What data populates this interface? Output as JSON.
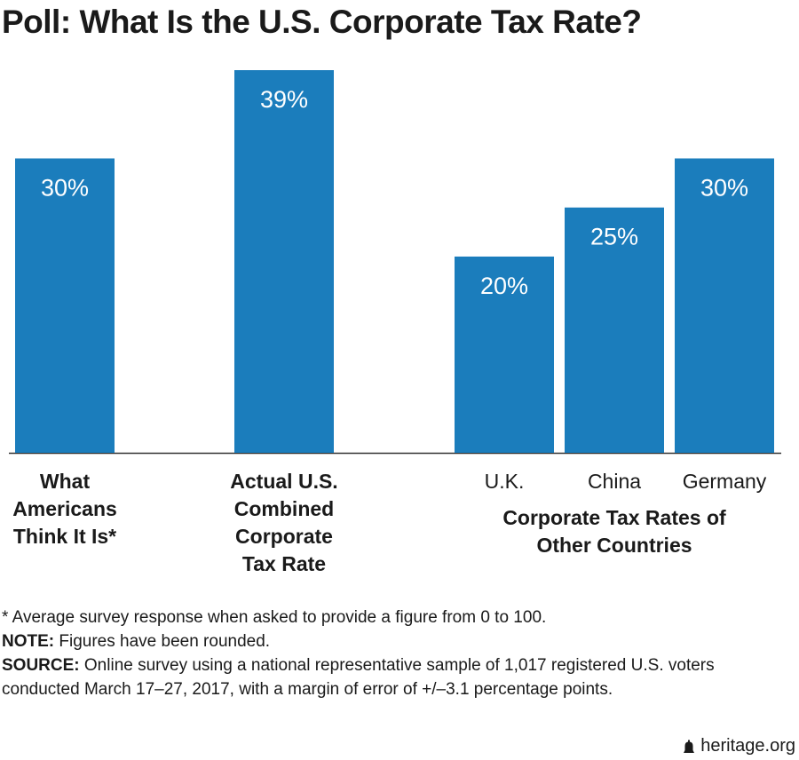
{
  "chart_data": {
    "type": "bar",
    "title": "Poll: What Is the U.S. Corporate Tax Rate?",
    "categories": [
      "What Americans Think It Is*",
      "Actual U.S. Combined Corporate Tax Rate",
      "U.K.",
      "China",
      "Germany"
    ],
    "values": [
      30,
      39,
      20,
      25,
      30
    ],
    "value_labels": [
      "30%",
      "39%",
      "20%",
      "25%",
      "30%"
    ],
    "color": "#1b7dbc",
    "group_label": "Corporate Tax Rates of Other Countries"
  },
  "footnotes": {
    "asterisk": "* Average survey response when asked to provide a figure from 0 to 100.",
    "note_label": "NOTE:",
    "note": "Figures have been rounded.",
    "source_label": "SOURCE:",
    "source": "Online survey using a national representative sample of 1,017 registered U.S. voters conducted March 17–27, 2017, with a margin of error of +/–3.1 percentage points."
  },
  "brand": "heritage.org"
}
